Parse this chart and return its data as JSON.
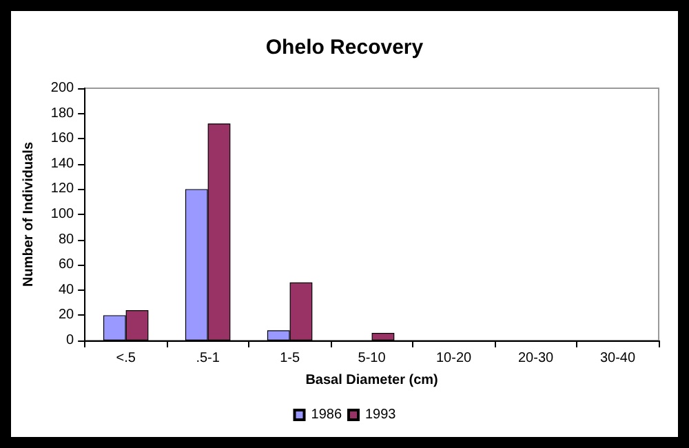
{
  "chart_data": {
    "type": "bar",
    "title": "Ohelo Recovery",
    "xlabel": "Basal Diameter (cm)",
    "ylabel": "Number of Individuals",
    "categories": [
      "<.5",
      ".5-1",
      "1-5",
      "5-10",
      "10-20",
      "20-30",
      "30-40"
    ],
    "series": [
      {
        "name": "1986",
        "color": "#9999ff",
        "values": [
          20,
          120,
          8,
          0,
          0,
          0,
          0
        ]
      },
      {
        "name": "1993",
        "color": "#993366",
        "values": [
          24,
          172,
          46,
          6,
          0,
          0,
          0
        ]
      }
    ],
    "ylim": [
      0,
      200
    ],
    "yticks": [
      0,
      20,
      40,
      60,
      80,
      100,
      120,
      140,
      160,
      180,
      200
    ],
    "grid": false,
    "legend": "bottom"
  }
}
